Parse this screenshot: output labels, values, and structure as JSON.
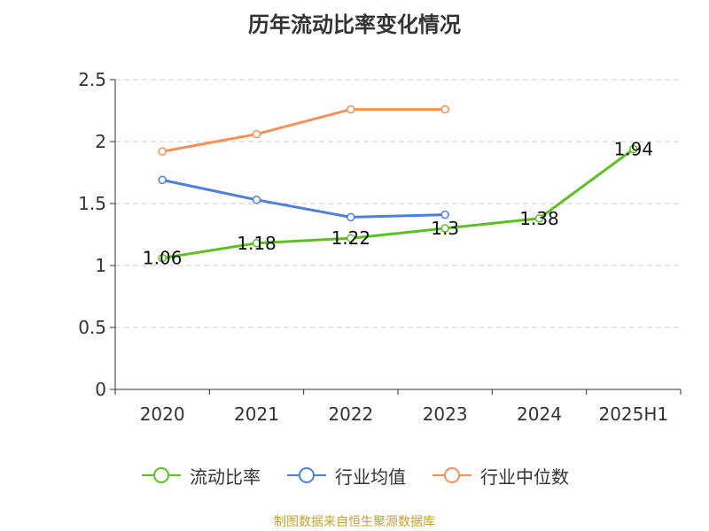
{
  "chart_data": {
    "type": "line",
    "title": "历年流动比率变化情况",
    "categories": [
      "2020",
      "2021",
      "2022",
      "2023",
      "2024",
      "2025H1"
    ],
    "y_ticks": [
      "0",
      "0.5",
      "1",
      "1.5",
      "2",
      "2.5"
    ],
    "ylim": [
      0,
      2.5
    ],
    "grid": true,
    "legend_position": "bottom",
    "series": [
      {
        "name": "流动比率",
        "color": "#5cc022",
        "values": [
          1.06,
          1.18,
          1.22,
          1.3,
          1.38,
          1.94
        ],
        "labels": [
          "1.06",
          "1.18",
          "1.22",
          "1.3",
          "1.38",
          "1.94"
        ]
      },
      {
        "name": "行业均值",
        "color": "#4f7fdb",
        "values": [
          1.69,
          1.53,
          1.39,
          1.41,
          null,
          null
        ]
      },
      {
        "name": "行业中位数",
        "color": "#f5905a",
        "values": [
          1.92,
          2.06,
          2.26,
          2.26,
          null,
          null
        ]
      }
    ]
  },
  "source": {
    "text": "制图数据来自恒生聚源数据库",
    "color": "#c8a02c"
  }
}
